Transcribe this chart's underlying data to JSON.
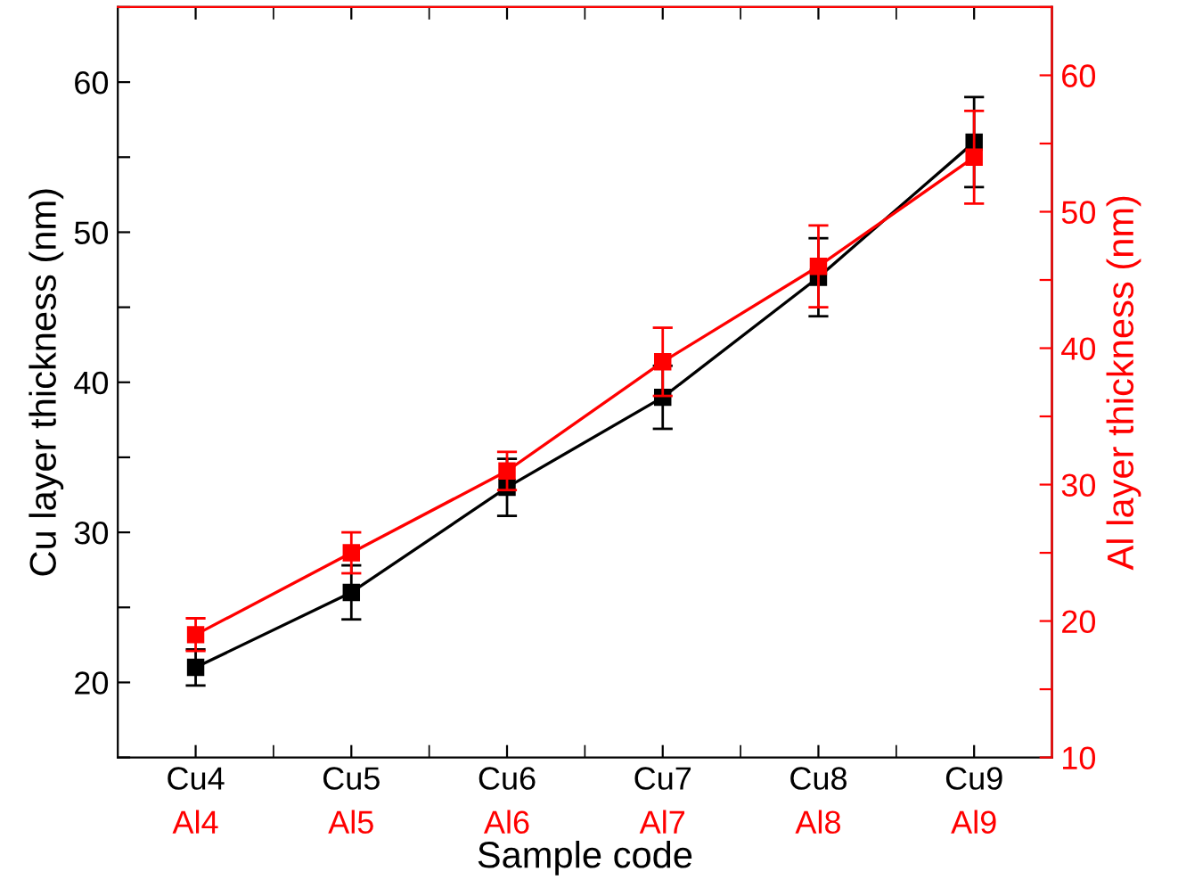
{
  "chart_data": {
    "type": "line",
    "xlabel": "Sample code",
    "ylabel": "Cu layer thickness (nm)",
    "y2label": "Al layer thickness (nm)",
    "categories": [
      "Cu4",
      "Cu5",
      "Cu6",
      "Cu7",
      "Cu8",
      "Cu9"
    ],
    "series": [
      {
        "color": "#000000",
        "values": [
          21,
          26,
          33,
          39,
          47,
          56
        ],
        "errors": [
          1.2,
          1.8,
          1.9,
          2.1,
          2.6,
          3.0
        ]
      },
      {
        "color": "#ff0000",
        "axis": "y2",
        "values": [
          19,
          25,
          31,
          39,
          46,
          54
        ],
        "errors": [
          1.2,
          1.5,
          1.4,
          2.5,
          3.0,
          3.4
        ]
      }
    ],
    "ylim": [
      15,
      65
    ],
    "yticks": [
      {
        "value": 15,
        "label": null
      },
      20,
      {
        "value": 25,
        "label": null
      },
      30,
      {
        "value": 35,
        "label": null
      },
      40,
      {
        "value": 45,
        "label": null
      },
      50,
      {
        "value": 55,
        "label": null
      },
      60,
      {
        "value": 65,
        "label": null
      }
    ],
    "y2lim": [
      10,
      65
    ],
    "y2ticks": [
      10,
      {
        "value": 15,
        "label": null
      },
      20,
      {
        "value": 25,
        "label": null
      },
      30,
      {
        "value": 35,
        "label": null
      },
      40,
      {
        "value": 45,
        "label": null
      },
      50,
      {
        "value": 55,
        "label": null
      },
      60,
      {
        "value": 65,
        "label": null
      }
    ],
    "annotations": [
      "Al4",
      "Al5",
      "Al6",
      "Al7",
      "Al8",
      "Al9"
    ],
    "marker": "square",
    "line_style": "solid",
    "grid": false,
    "legend": false
  }
}
